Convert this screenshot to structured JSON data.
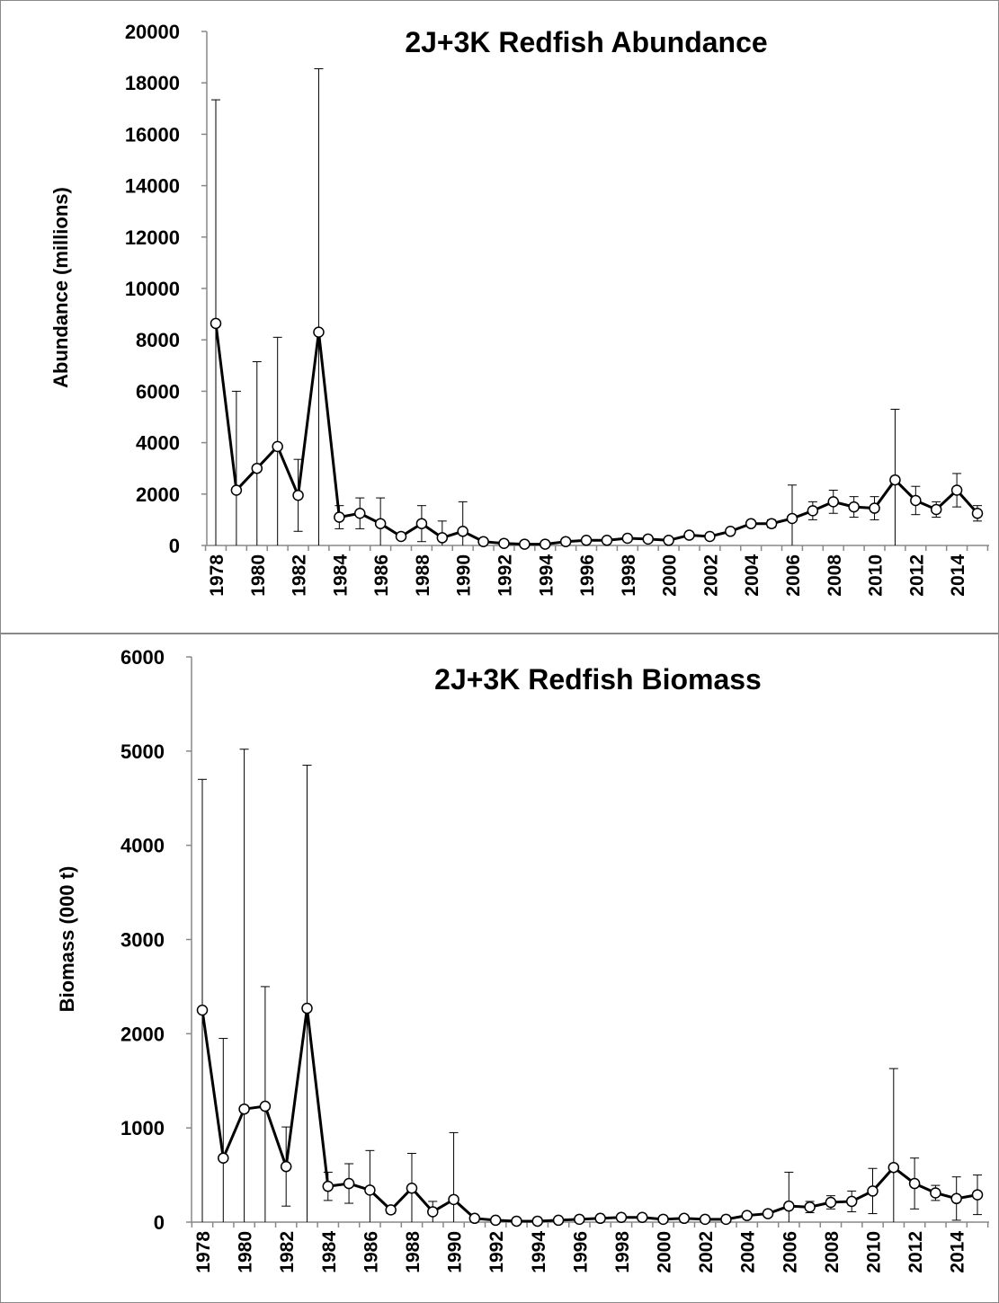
{
  "chart_data": [
    {
      "type": "line",
      "title": "2J+3K  Redfish Abundance",
      "y_label": "Abundance (millions)",
      "categories": [
        "1978",
        null,
        "1980",
        null,
        "1982",
        null,
        "1984",
        null,
        "1986",
        null,
        "1988",
        null,
        "1990",
        null,
        "1992",
        null,
        "1994",
        null,
        "1996",
        null,
        "1998",
        null,
        "2000",
        null,
        "2002",
        null,
        "2004",
        null,
        "2006",
        null,
        "2008",
        null,
        "2010",
        null,
        "2012",
        null,
        "2014",
        null
      ],
      "values": [
        8640,
        2150,
        3000,
        3850,
        1950,
        8300,
        1100,
        1250,
        850,
        350,
        850,
        300,
        550,
        150,
        80,
        50,
        50,
        150,
        200,
        200,
        280,
        250,
        200,
        400,
        350,
        550,
        850,
        850,
        1050,
        1350,
        1700,
        1500,
        1450,
        2550,
        1750,
        1400,
        2150,
        1250
      ],
      "errors": [
        8700,
        3850,
        4150,
        4250,
        1400,
        10250,
        450,
        600,
        1000,
        100,
        700,
        650,
        1150,
        50,
        30,
        20,
        20,
        40,
        40,
        40,
        50,
        50,
        40,
        60,
        60,
        80,
        100,
        150,
        1300,
        350,
        450,
        400,
        450,
        2750,
        550,
        300,
        650,
        300
      ],
      "color": "#000000",
      "ylim": [
        0,
        20000
      ],
      "yticks": [
        0,
        2000,
        4000,
        6000,
        8000,
        10000,
        12000,
        14000,
        16000,
        18000,
        20000
      ]
    },
    {
      "type": "line",
      "title": "2J+3K  Redfish Biomass",
      "y_label": "Biomass (000 t)",
      "categories": [
        "1978",
        null,
        "1980",
        null,
        "1982",
        null,
        "1984",
        null,
        "1986",
        null,
        "1988",
        null,
        "1990",
        null,
        "1992",
        null,
        "1994",
        null,
        "1996",
        null,
        "1998",
        null,
        "2000",
        null,
        "2002",
        null,
        "2004",
        null,
        "2006",
        null,
        "2008",
        null,
        "2010",
        null,
        "2012",
        null,
        "2014",
        null
      ],
      "values": [
        2250,
        680,
        1200,
        1230,
        590,
        2270,
        380,
        410,
        340,
        130,
        360,
        110,
        240,
        40,
        20,
        10,
        10,
        20,
        30,
        40,
        50,
        50,
        30,
        40,
        30,
        30,
        70,
        90,
        170,
        160,
        210,
        220,
        330,
        580,
        410,
        310,
        250,
        290
      ],
      "errors": [
        2450,
        1270,
        3820,
        1270,
        420,
        2580,
        150,
        210,
        420,
        40,
        370,
        110,
        710,
        10,
        5,
        5,
        5,
        5,
        10,
        10,
        10,
        10,
        10,
        10,
        10,
        10,
        15,
        20,
        360,
        60,
        70,
        110,
        240,
        1050,
        270,
        80,
        230,
        210
      ],
      "color": "#000000",
      "ylim": [
        0,
        6000
      ],
      "yticks": [
        0,
        1000,
        2000,
        3000,
        4000,
        5000,
        6000
      ]
    }
  ]
}
